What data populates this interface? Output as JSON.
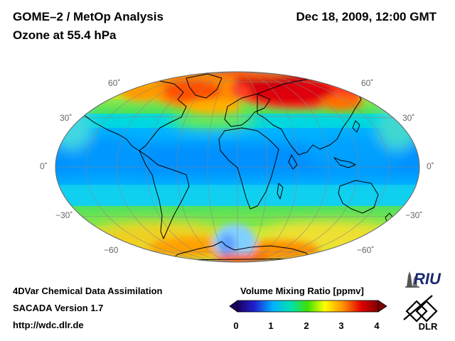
{
  "header": {
    "title": "GOME–2 / MetOp Analysis",
    "subtitle": "Ozone at 55.4 hPa",
    "datetime": "Dec 18, 2009, 12:00 GMT"
  },
  "map": {
    "projection": "Hammer–Aitoff global",
    "lat_labels_left": [
      "60˚",
      "30˚",
      "0˚",
      "−30˚",
      "−60"
    ],
    "lat_labels_right": [
      "60˚",
      "30˚",
      "0˚",
      "−30˚",
      "−60˚"
    ]
  },
  "colorbar": {
    "title": "Volume Mixing Ratio [ppmv]",
    "ticks": [
      "0",
      "1",
      "2",
      "3",
      "4"
    ],
    "min": 0,
    "max": 4
  },
  "footer": {
    "line1": "4DVar Chemical Data Assimilation",
    "line2": "SACADA Version 1.7",
    "line3": "http://wdc.dlr.de"
  },
  "logos": {
    "riu_text": "RIU",
    "dlr_text": "DLR"
  },
  "colors": {
    "scale": [
      "#1a0060",
      "#2020d0",
      "#00b0ff",
      "#00e0b0",
      "#40e000",
      "#ffff00",
      "#ff9000",
      "#e00000",
      "#800000"
    ]
  }
}
